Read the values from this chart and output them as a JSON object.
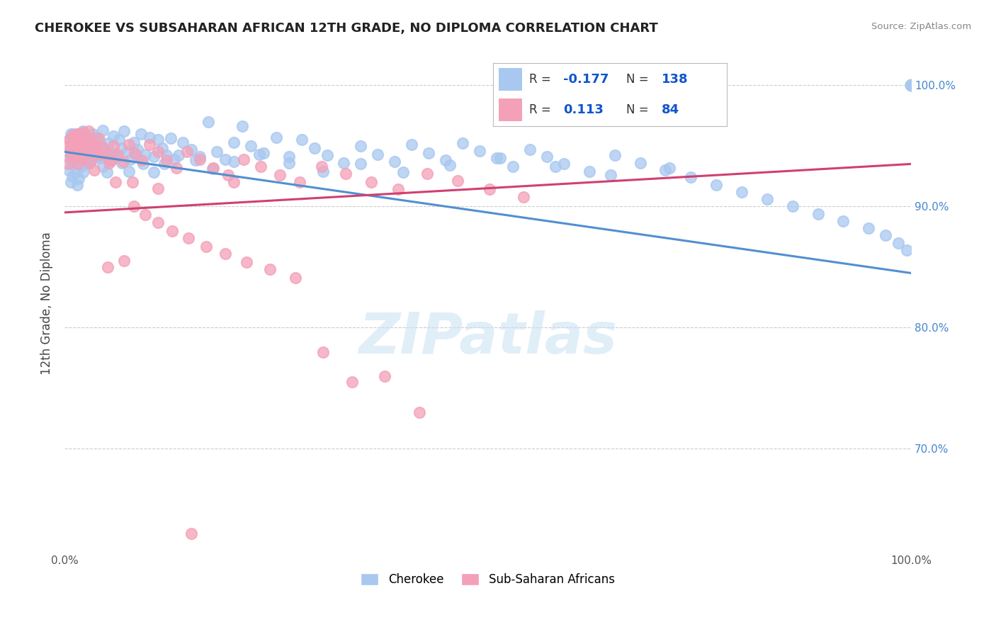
{
  "title": "CHEROKEE VS SUBSAHARAN AFRICAN 12TH GRADE, NO DIPLOMA CORRELATION CHART",
  "source": "Source: ZipAtlas.com",
  "ylabel": "12th Grade, No Diploma",
  "legend_r_blue": "-0.177",
  "legend_n_blue": "138",
  "legend_r_pink": "0.113",
  "legend_n_pink": "84",
  "blue_fill": "#A8C8F0",
  "blue_edge": "#A8C8F0",
  "pink_fill": "#F4A0B8",
  "pink_edge": "#F4A0B8",
  "trend_blue": "#5090D0",
  "trend_pink": "#D04070",
  "legend_text_color": "#1155CC",
  "legend_label_color": "#333333",
  "right_tick_color": "#4488CC",
  "background_color": "#FFFFFF",
  "grid_color": "#CCCCCC",
  "xlim": [
    0.0,
    1.0
  ],
  "ylim": [
    0.615,
    1.025
  ],
  "yticks": [
    0.7,
    0.8,
    0.9,
    1.0
  ],
  "yticklabels_right": [
    "70.0%",
    "80.0%",
    "90.0%",
    "100.0%"
  ],
  "blue_trend": [
    0.0,
    0.945,
    1.0,
    0.845
  ],
  "pink_trend": [
    0.0,
    0.895,
    1.0,
    0.935
  ],
  "blue_x": [
    0.005,
    0.006,
    0.007,
    0.008,
    0.008,
    0.009,
    0.01,
    0.01,
    0.011,
    0.012,
    0.013,
    0.014,
    0.015,
    0.015,
    0.016,
    0.017,
    0.018,
    0.019,
    0.02,
    0.021,
    0.022,
    0.022,
    0.023,
    0.024,
    0.025,
    0.026,
    0.027,
    0.028,
    0.029,
    0.03,
    0.031,
    0.033,
    0.035,
    0.037,
    0.039,
    0.041,
    0.043,
    0.045,
    0.047,
    0.049,
    0.052,
    0.055,
    0.058,
    0.061,
    0.064,
    0.067,
    0.07,
    0.074,
    0.078,
    0.082,
    0.086,
    0.09,
    0.095,
    0.1,
    0.105,
    0.11,
    0.115,
    0.12,
    0.125,
    0.13,
    0.14,
    0.15,
    0.16,
    0.17,
    0.18,
    0.19,
    0.2,
    0.21,
    0.22,
    0.235,
    0.25,
    0.265,
    0.28,
    0.295,
    0.31,
    0.33,
    0.35,
    0.37,
    0.39,
    0.41,
    0.43,
    0.45,
    0.47,
    0.49,
    0.51,
    0.53,
    0.55,
    0.57,
    0.59,
    0.62,
    0.65,
    0.68,
    0.71,
    0.74,
    0.77,
    0.8,
    0.83,
    0.86,
    0.89,
    0.92,
    0.95,
    0.97,
    0.985,
    0.995,
    1.0,
    1.0,
    1.0,
    1.0,
    1.0,
    1.0,
    1.0,
    1.0,
    1.0,
    1.0,
    0.005,
    0.007,
    0.009,
    0.011,
    0.013,
    0.015,
    0.017,
    0.019,
    0.022,
    0.025,
    0.028,
    0.031,
    0.035,
    0.04,
    0.045,
    0.05,
    0.055,
    0.06,
    0.068,
    0.076,
    0.084,
    0.093,
    0.105,
    0.118,
    0.135,
    0.155,
    0.175,
    0.2,
    0.23,
    0.265,
    0.305,
    0.35,
    0.4,
    0.455,
    0.515,
    0.58,
    0.645,
    0.715
  ],
  "blue_y": [
    0.94,
    0.955,
    0.96,
    0.95,
    0.945,
    0.935,
    0.95,
    0.96,
    0.94,
    0.945,
    0.955,
    0.948,
    0.942,
    0.96,
    0.952,
    0.945,
    0.958,
    0.941,
    0.955,
    0.948,
    0.951,
    0.962,
    0.945,
    0.958,
    0.943,
    0.95,
    0.944,
    0.956,
    0.939,
    0.953,
    0.947,
    0.96,
    0.943,
    0.957,
    0.941,
    0.955,
    0.948,
    0.963,
    0.946,
    0.94,
    0.952,
    0.944,
    0.958,
    0.941,
    0.955,
    0.948,
    0.962,
    0.945,
    0.939,
    0.953,
    0.947,
    0.96,
    0.943,
    0.957,
    0.941,
    0.955,
    0.948,
    0.942,
    0.956,
    0.939,
    0.953,
    0.947,
    0.941,
    0.97,
    0.945,
    0.939,
    0.953,
    0.966,
    0.95,
    0.944,
    0.957,
    0.941,
    0.955,
    0.948,
    0.942,
    0.936,
    0.95,
    0.943,
    0.937,
    0.951,
    0.944,
    0.938,
    0.952,
    0.946,
    0.94,
    0.933,
    0.947,
    0.941,
    0.935,
    0.929,
    0.942,
    0.936,
    0.93,
    0.924,
    0.918,
    0.912,
    0.906,
    0.9,
    0.894,
    0.888,
    0.882,
    0.876,
    0.87,
    0.864,
    1.0,
    1.0,
    1.0,
    1.0,
    1.0,
    1.0,
    1.0,
    1.0,
    1.0,
    1.0,
    0.93,
    0.92,
    0.925,
    0.935,
    0.928,
    0.918,
    0.923,
    0.933,
    0.928,
    0.935,
    0.942,
    0.938,
    0.945,
    0.94,
    0.933,
    0.928,
    0.938,
    0.943,
    0.936,
    0.929,
    0.942,
    0.935,
    0.928,
    0.935,
    0.942,
    0.938,
    0.931,
    0.937,
    0.943,
    0.936,
    0.929,
    0.935,
    0.928,
    0.934,
    0.94,
    0.933,
    0.926,
    0.932
  ],
  "pink_x": [
    0.004,
    0.006,
    0.007,
    0.008,
    0.009,
    0.01,
    0.011,
    0.012,
    0.013,
    0.015,
    0.016,
    0.018,
    0.02,
    0.022,
    0.024,
    0.026,
    0.028,
    0.031,
    0.034,
    0.037,
    0.04,
    0.044,
    0.048,
    0.053,
    0.058,
    0.063,
    0.069,
    0.076,
    0.083,
    0.091,
    0.1,
    0.11,
    0.12,
    0.132,
    0.145,
    0.16,
    0.176,
    0.193,
    0.212,
    0.232,
    0.254,
    0.278,
    0.304,
    0.332,
    0.362,
    0.394,
    0.428,
    0.464,
    0.502,
    0.542,
    0.004,
    0.007,
    0.01,
    0.013,
    0.016,
    0.02,
    0.025,
    0.03,
    0.036,
    0.043,
    0.051,
    0.06,
    0.07,
    0.082,
    0.095,
    0.11,
    0.127,
    0.146,
    0.167,
    0.19,
    0.215,
    0.243,
    0.273,
    0.305,
    0.34,
    0.378,
    0.419,
    0.02,
    0.035,
    0.055,
    0.08,
    0.11,
    0.15,
    0.2
  ],
  "pink_y": [
    0.95,
    0.955,
    0.948,
    0.942,
    0.958,
    0.951,
    0.945,
    0.959,
    0.952,
    0.946,
    0.96,
    0.953,
    0.947,
    0.961,
    0.954,
    0.948,
    0.962,
    0.955,
    0.949,
    0.942,
    0.956,
    0.949,
    0.943,
    0.936,
    0.95,
    0.943,
    0.937,
    0.951,
    0.944,
    0.938,
    0.951,
    0.945,
    0.938,
    0.932,
    0.945,
    0.939,
    0.932,
    0.926,
    0.939,
    0.933,
    0.926,
    0.92,
    0.933,
    0.927,
    0.92,
    0.914,
    0.927,
    0.921,
    0.914,
    0.908,
    0.935,
    0.942,
    0.948,
    0.941,
    0.935,
    0.949,
    0.942,
    0.936,
    0.95,
    0.943,
    0.85,
    0.92,
    0.855,
    0.9,
    0.893,
    0.887,
    0.88,
    0.874,
    0.867,
    0.861,
    0.854,
    0.848,
    0.841,
    0.78,
    0.755,
    0.76,
    0.73,
    0.94,
    0.93,
    0.938,
    0.92,
    0.915,
    0.63,
    0.92
  ]
}
